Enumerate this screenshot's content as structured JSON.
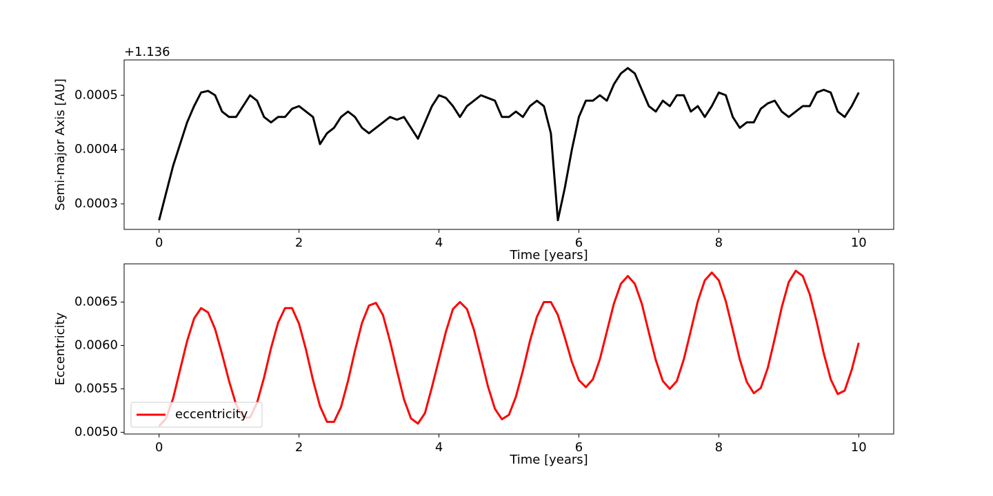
{
  "chart_data": [
    {
      "type": "line",
      "offset_label": "+1.136",
      "xlabel": "Time [years]",
      "ylabel": "Semi-major Axis [AU]",
      "color": "#000000",
      "x": [
        0,
        0.1,
        0.2,
        0.3,
        0.4,
        0.5,
        0.6,
        0.7,
        0.8,
        0.9,
        1,
        1.1,
        1.2,
        1.3,
        1.4,
        1.5,
        1.6,
        1.7,
        1.8,
        1.9,
        2,
        2.1,
        2.2,
        2.3,
        2.4,
        2.5,
        2.6,
        2.7,
        2.8,
        2.9,
        3,
        3.1,
        3.2,
        3.3,
        3.4,
        3.5,
        3.6,
        3.7,
        3.8,
        3.9,
        4,
        4.1,
        4.2,
        4.3,
        4.4,
        4.5,
        4.6,
        4.7,
        4.8,
        4.9,
        5,
        5.1,
        5.2,
        5.3,
        5.4,
        5.5,
        5.6,
        5.7,
        5.8,
        5.9,
        6,
        6.1,
        6.2,
        6.3,
        6.4,
        6.5,
        6.6,
        6.7,
        6.8,
        6.9,
        7,
        7.1,
        7.2,
        7.3,
        7.4,
        7.5,
        7.6,
        7.7,
        7.8,
        7.9,
        8,
        8.1,
        8.2,
        8.3,
        8.4,
        8.5,
        8.6,
        8.7,
        8.8,
        8.9,
        9,
        9.1,
        9.2,
        9.3,
        9.4,
        9.5,
        9.6,
        9.7,
        9.8,
        9.9,
        10
      ],
      "values": [
        0.00027,
        0.00032,
        0.00037,
        0.00041,
        0.00045,
        0.00048,
        0.000505,
        0.000508,
        0.0005,
        0.00047,
        0.00046,
        0.00046,
        0.00048,
        0.0005,
        0.00049,
        0.00046,
        0.00045,
        0.00046,
        0.00046,
        0.000475,
        0.00048,
        0.00047,
        0.00046,
        0.00041,
        0.00043,
        0.00044,
        0.00046,
        0.00047,
        0.00046,
        0.00044,
        0.00043,
        0.00044,
        0.00045,
        0.00046,
        0.000455,
        0.00046,
        0.00044,
        0.00042,
        0.00045,
        0.00048,
        0.0005,
        0.000495,
        0.00048,
        0.00046,
        0.00048,
        0.00049,
        0.0005,
        0.000495,
        0.00049,
        0.00046,
        0.00046,
        0.00047,
        0.00046,
        0.00048,
        0.00049,
        0.00048,
        0.00043,
        0.00027,
        0.00033,
        0.0004,
        0.00046,
        0.00049,
        0.00049,
        0.0005,
        0.00049,
        0.00052,
        0.00054,
        0.00055,
        0.00054,
        0.00051,
        0.00048,
        0.00047,
        0.00049,
        0.00048,
        0.0005,
        0.0005,
        0.00047,
        0.00048,
        0.00046,
        0.00048,
        0.000505,
        0.0005,
        0.00046,
        0.00044,
        0.00045,
        0.00045,
        0.000475,
        0.000485,
        0.00049,
        0.00047,
        0.00046,
        0.00047,
        0.00048,
        0.00048,
        0.000505,
        0.00051,
        0.000505,
        0.00047,
        0.00046,
        0.00048,
        0.000505
      ],
      "xlim": [
        -0.5,
        10.5
      ],
      "ylim": [
        0.000253,
        0.000565
      ],
      "xticks": [
        0,
        2,
        4,
        6,
        8,
        10
      ],
      "yticks": [
        0.0003,
        0.0004,
        0.0005
      ]
    },
    {
      "type": "line",
      "xlabel": "Time [years]",
      "ylabel": "Eccentricity",
      "legend": "lower left",
      "x": [
        0,
        0.1,
        0.2,
        0.3,
        0.4,
        0.5,
        0.6,
        0.7,
        0.8,
        0.9,
        1,
        1.1,
        1.2,
        1.3,
        1.4,
        1.5,
        1.6,
        1.7,
        1.8,
        1.9,
        2,
        2.1,
        2.2,
        2.3,
        2.4,
        2.5,
        2.6,
        2.7,
        2.8,
        2.9,
        3,
        3.1,
        3.2,
        3.3,
        3.4,
        3.5,
        3.6,
        3.7,
        3.8,
        3.9,
        4,
        4.1,
        4.2,
        4.3,
        4.4,
        4.5,
        4.6,
        4.7,
        4.8,
        4.9,
        5,
        5.1,
        5.2,
        5.3,
        5.4,
        5.5,
        5.6,
        5.7,
        5.8,
        5.9,
        6,
        6.1,
        6.2,
        6.3,
        6.4,
        6.5,
        6.6,
        6.7,
        6.8,
        6.9,
        7,
        7.1,
        7.2,
        7.3,
        7.4,
        7.5,
        7.6,
        7.7,
        7.8,
        7.9,
        8,
        8.1,
        8.2,
        8.3,
        8.4,
        8.5,
        8.6,
        8.7,
        8.8,
        8.9,
        9,
        9.1,
        9.2,
        9.3,
        9.4,
        9.5,
        9.6,
        9.7,
        9.8,
        9.9,
        10
      ],
      "series": [
        {
          "name": "eccentricity",
          "color": "#ff0000",
          "values": [
            0.00507,
            0.00516,
            0.00539,
            0.00572,
            0.00605,
            0.00631,
            0.00643,
            0.00638,
            0.00619,
            0.0059,
            0.00559,
            0.00532,
            0.00517,
            0.00517,
            0.00534,
            0.00563,
            0.00597,
            0.00626,
            0.00643,
            0.00643,
            0.00625,
            0.00595,
            0.0056,
            0.0053,
            0.00512,
            0.00512,
            0.00529,
            0.00559,
            0.00594,
            0.00626,
            0.00646,
            0.00649,
            0.00635,
            0.00605,
            0.00571,
            0.00538,
            0.00516,
            0.0051,
            0.00522,
            0.00552,
            0.00584,
            0.00616,
            0.00642,
            0.0065,
            0.00642,
            0.00618,
            0.00586,
            0.00553,
            0.00527,
            0.00515,
            0.0052,
            0.00541,
            0.00571,
            0.00605,
            0.00633,
            0.0065,
            0.0065,
            0.00635,
            0.00609,
            0.00581,
            0.0056,
            0.00552,
            0.00561,
            0.00584,
            0.00616,
            0.00648,
            0.00671,
            0.0068,
            0.00671,
            0.00648,
            0.00615,
            0.00583,
            0.00559,
            0.0055,
            0.00559,
            0.00584,
            0.00617,
            0.00651,
            0.00675,
            0.00684,
            0.00675,
            0.00651,
            0.00618,
            0.00584,
            0.00558,
            0.00545,
            0.00551,
            0.00574,
            0.00608,
            0.00644,
            0.00673,
            0.00686,
            0.0068,
            0.00659,
            0.00627,
            0.00591,
            0.00561,
            0.00544,
            0.00548,
            0.00572,
            0.00603
          ]
        }
      ],
      "xlim": [
        -0.5,
        10.5
      ],
      "ylim": [
        0.00498,
        0.00694
      ],
      "xticks": [
        0,
        2,
        4,
        6,
        8,
        10
      ],
      "yticks": [
        {
          "value": 0.005,
          "label": "0.0050"
        },
        0.0055,
        {
          "value": 0.006,
          "label": "0.0060"
        },
        0.0065
      ]
    }
  ]
}
